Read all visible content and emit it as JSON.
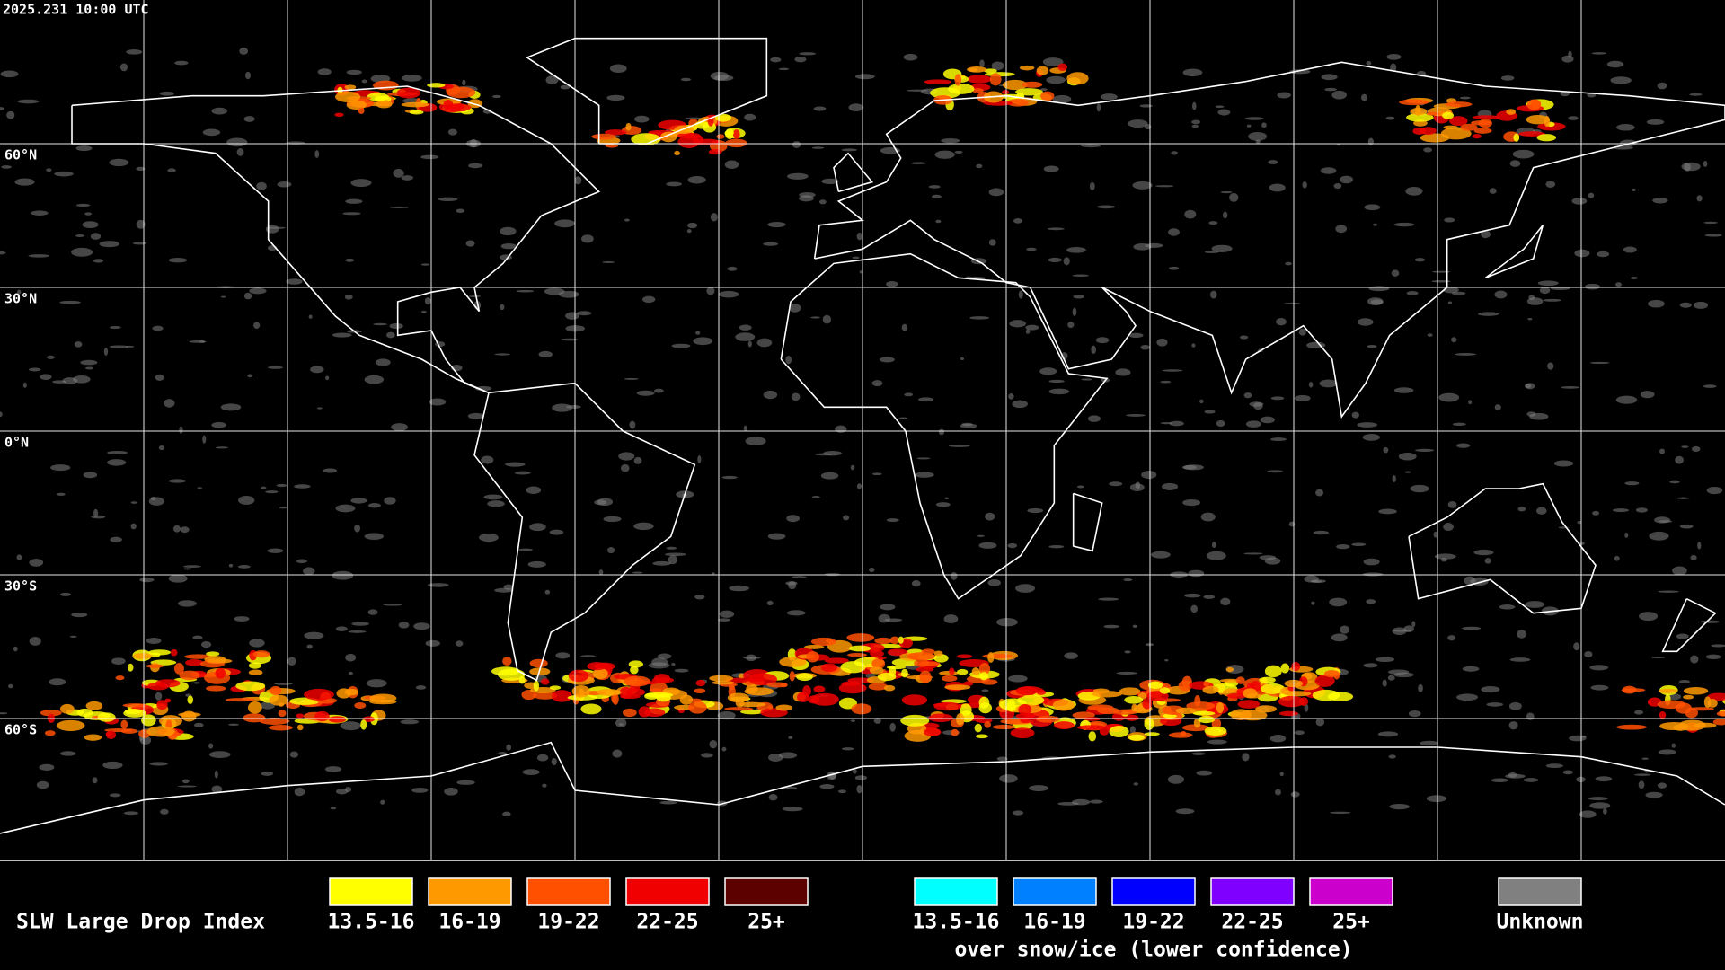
{
  "timestamp": "2025.231 10:00 UTC",
  "latitude_labels": [
    "60°N",
    "30°N",
    "0°N",
    "30°S",
    "60°S"
  ],
  "legend": {
    "title": "SLW Large Drop Index",
    "items": [
      {
        "label": "13.5-16",
        "color": "#ffff00"
      },
      {
        "label": "16-19",
        "color": "#ff9900"
      },
      {
        "label": "19-22",
        "color": "#ff5000"
      },
      {
        "label": "22-25",
        "color": "#f00000"
      },
      {
        "label": "25+",
        "color": "#5c0000"
      }
    ],
    "snow_items": [
      {
        "label": "13.5-16",
        "color": "#00ffff"
      },
      {
        "label": "16-19",
        "color": "#0080ff"
      },
      {
        "label": "19-22",
        "color": "#0000ff"
      },
      {
        "label": "22-25",
        "color": "#8000ff"
      },
      {
        "label": "25+",
        "color": "#cc00cc"
      }
    ],
    "snow_note": "over snow/ice (lower confidence)",
    "unknown": {
      "label": "Unknown",
      "color": "#808080"
    }
  }
}
